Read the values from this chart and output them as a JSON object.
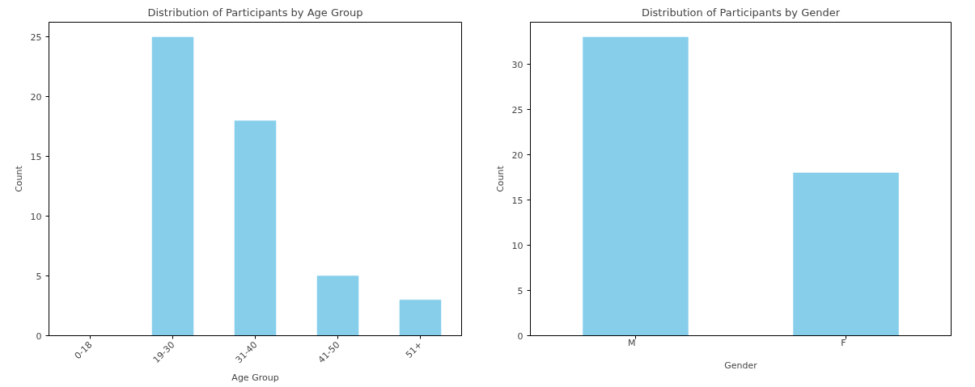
{
  "chart_data": [
    {
      "type": "bar",
      "title": "Distribution of Participants by Age Group",
      "xlabel": "Age Group",
      "ylabel": "Count",
      "categories": [
        "0-18",
        "19-30",
        "31-40",
        "41-50",
        "51+"
      ],
      "values": [
        0,
        25,
        18,
        5,
        3
      ],
      "color": "#87ceeb",
      "ylim": [
        0,
        26.25
      ],
      "yticks": [
        0,
        5,
        10,
        15,
        20,
        25
      ],
      "grid": false
    },
    {
      "type": "bar",
      "title": "Distribution of Participants by Gender",
      "xlabel": "Gender",
      "ylabel": "Count",
      "categories": [
        "M",
        "F"
      ],
      "values": [
        33,
        18
      ],
      "color": "#87ceeb",
      "ylim": [
        0,
        34.65
      ],
      "yticks": [
        0,
        5,
        10,
        15,
        20,
        25,
        30
      ],
      "grid": false
    }
  ]
}
